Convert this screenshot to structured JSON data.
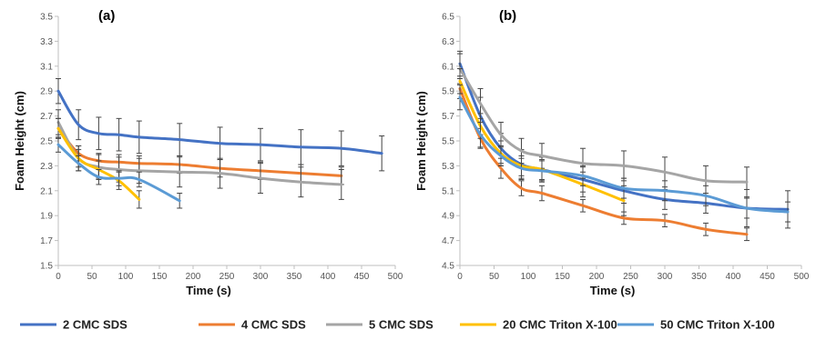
{
  "chart_data": [
    {
      "type": "line",
      "panel_label": "(a)",
      "xlabel": "Time (s)",
      "ylabel": "Foam Height (cm)",
      "xlim": [
        0,
        500
      ],
      "ylim": [
        1.5,
        3.5
      ],
      "xticks": [
        0,
        50,
        100,
        150,
        200,
        250,
        300,
        350,
        400,
        450,
        500
      ],
      "yticks": [
        "1.5",
        "1.7",
        "1.9",
        "2.1",
        "2.3",
        "2.5",
        "2.7",
        "2.9",
        "3.1",
        "3.3",
        "3.5"
      ],
      "series": [
        {
          "name": "2 CMC SDS",
          "x": [
            0,
            30,
            60,
            90,
            120,
            180,
            240,
            300,
            360,
            420,
            480
          ],
          "y": [
            2.9,
            2.63,
            2.56,
            2.55,
            2.53,
            2.51,
            2.48,
            2.47,
            2.45,
            2.44,
            2.4
          ],
          "err": [
            0.1,
            0.12,
            0.13,
            0.13,
            0.13,
            0.13,
            0.13,
            0.13,
            0.14,
            0.14,
            0.14
          ]
        },
        {
          "name": "4 CMC SDS",
          "x": [
            0,
            30,
            60,
            90,
            120,
            180,
            240,
            300,
            360,
            420
          ],
          "y": [
            2.6,
            2.4,
            2.34,
            2.33,
            2.32,
            2.31,
            2.28,
            2.26,
            2.24,
            2.22
          ],
          "err": [
            0.08,
            0.06,
            0.06,
            0.06,
            0.06,
            0.07,
            0.07,
            0.07,
            0.07,
            0.07
          ]
        },
        {
          "name": "5 CMC SDS",
          "x": [
            0,
            30,
            60,
            90,
            120,
            180,
            240,
            300,
            360,
            420
          ],
          "y": [
            2.65,
            2.36,
            2.29,
            2.27,
            2.26,
            2.25,
            2.24,
            2.2,
            2.17,
            2.15
          ],
          "err": [
            0.1,
            0.1,
            0.1,
            0.1,
            0.1,
            0.12,
            0.12,
            0.12,
            0.12,
            0.12
          ]
        },
        {
          "name": "20 CMC Triton X-100",
          "x": [
            0,
            30,
            60,
            90,
            120
          ],
          "y": [
            2.6,
            2.36,
            2.27,
            2.18,
            2.03
          ],
          "err": [
            0.08,
            0.07,
            0.07,
            0.07,
            0.07
          ]
        },
        {
          "name": "50 CMC Triton X-100",
          "x": [
            0,
            30,
            60,
            90,
            120,
            180
          ],
          "y": [
            2.47,
            2.32,
            2.21,
            2.2,
            2.19,
            2.02
          ],
          "err": [
            0.06,
            0.06,
            0.06,
            0.06,
            0.06,
            0.06
          ]
        }
      ]
    },
    {
      "type": "line",
      "panel_label": "(b)",
      "xlabel": "Time (s)",
      "ylabel": "Foam Height (cm)",
      "xlim": [
        0,
        500
      ],
      "ylim": [
        4.5,
        6.5
      ],
      "xticks": [
        0,
        50,
        100,
        150,
        200,
        250,
        300,
        350,
        400,
        450,
        500
      ],
      "yticks": [
        "4.5",
        "4.7",
        "4.9",
        "5.1",
        "5.3",
        "5.5",
        "5.7",
        "5.9",
        "6.1",
        "6.3",
        "6.5"
      ],
      "series": [
        {
          "name": "2 CMC SDS",
          "x": [
            0,
            30,
            60,
            90,
            120,
            180,
            240,
            300,
            360,
            420,
            480
          ],
          "y": [
            6.12,
            5.7,
            5.44,
            5.31,
            5.27,
            5.19,
            5.1,
            5.03,
            5.0,
            4.96,
            4.95
          ],
          "err": [
            0.1,
            0.15,
            0.12,
            0.12,
            0.1,
            0.1,
            0.1,
            0.08,
            0.08,
            0.15,
            0.15
          ]
        },
        {
          "name": "4 CMC SDS",
          "x": [
            0,
            30,
            60,
            90,
            120,
            180,
            240,
            300,
            360,
            420
          ],
          "y": [
            5.92,
            5.52,
            5.28,
            5.12,
            5.08,
            4.98,
            4.88,
            4.86,
            4.79,
            4.75
          ],
          "err": [
            0.08,
            0.08,
            0.08,
            0.06,
            0.06,
            0.05,
            0.05,
            0.05,
            0.05,
            0.05
          ]
        },
        {
          "name": "5 CMC SDS",
          "x": [
            0,
            30,
            60,
            90,
            120,
            180,
            240,
            300,
            360,
            420
          ],
          "y": [
            6.08,
            5.8,
            5.55,
            5.42,
            5.38,
            5.32,
            5.3,
            5.25,
            5.18,
            5.17
          ],
          "err": [
            0.12,
            0.12,
            0.1,
            0.1,
            0.1,
            0.12,
            0.12,
            0.12,
            0.12,
            0.12
          ]
        },
        {
          "name": "20 CMC Triton X-100",
          "x": [
            0,
            30,
            60,
            90,
            120,
            180,
            240
          ],
          "y": [
            5.98,
            5.62,
            5.4,
            5.3,
            5.27,
            5.15,
            5.02
          ],
          "err": [
            0.1,
            0.1,
            0.1,
            0.08,
            0.08,
            0.1,
            0.12
          ]
        },
        {
          "name": "50 CMC Triton X-100",
          "x": [
            0,
            30,
            60,
            90,
            120,
            180,
            240,
            300,
            360,
            420,
            480
          ],
          "y": [
            5.85,
            5.55,
            5.38,
            5.28,
            5.26,
            5.22,
            5.12,
            5.1,
            5.06,
            4.96,
            4.93
          ],
          "err": [
            0.1,
            0.1,
            0.08,
            0.08,
            0.08,
            0.08,
            0.08,
            0.08,
            0.08,
            0.08,
            0.08
          ]
        }
      ]
    }
  ],
  "legend": {
    "placement": "bottom",
    "items": [
      {
        "label": "2 CMC SDS",
        "color": "#4472c4"
      },
      {
        "label": "4 CMC SDS",
        "color": "#ed7d31"
      },
      {
        "label": "5 CMC SDS",
        "color": "#a5a5a5"
      },
      {
        "label": "20 CMC Triton X-100",
        "color": "#ffc000"
      },
      {
        "label": "50 CMC Triton X-100",
        "color": "#5b9bd5"
      }
    ]
  },
  "colors": {
    "axis": "#bfbfbf",
    "error_bar": "#444444"
  }
}
